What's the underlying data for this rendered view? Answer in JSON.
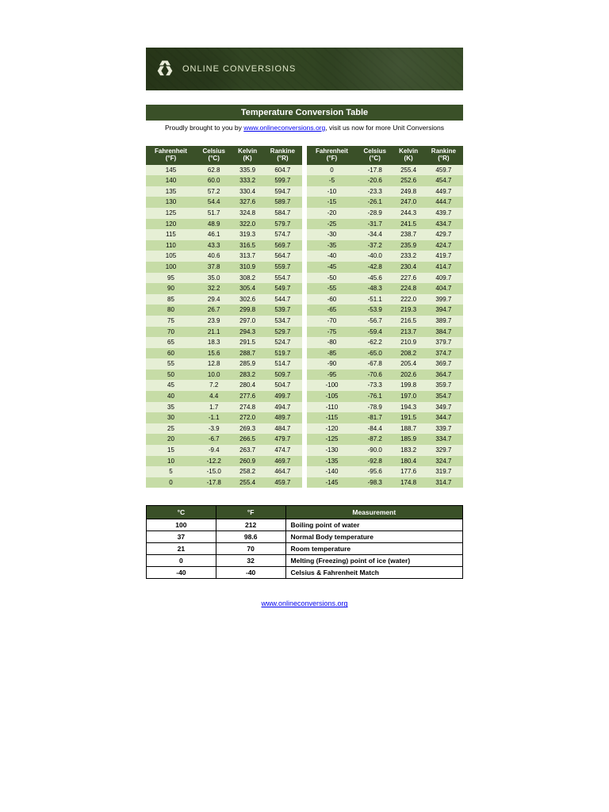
{
  "banner": {
    "text": "ONLINE CONVERSIONS"
  },
  "title": "Temperature Conversion Table",
  "subtitle": {
    "pre": "Proudly brought to you by ",
    "link": "www.onlineconversions.org",
    "post": ", visit us now for more Unit Conversions"
  },
  "headers": {
    "f1": "Fahrenheit",
    "f2": "(°F)",
    "c1": "Celsius",
    "c2": "(°C)",
    "k1": "Kelvin",
    "k2": "(K)",
    "r1": "Rankine",
    "r2": "(°R)"
  },
  "left_rows": [
    [
      "145",
      "62.8",
      "335.9",
      "604.7"
    ],
    [
      "140",
      "60.0",
      "333.2",
      "599.7"
    ],
    [
      "135",
      "57.2",
      "330.4",
      "594.7"
    ],
    [
      "130",
      "54.4",
      "327.6",
      "589.7"
    ],
    [
      "125",
      "51.7",
      "324.8",
      "584.7"
    ],
    [
      "120",
      "48.9",
      "322.0",
      "579.7"
    ],
    [
      "115",
      "46.1",
      "319.3",
      "574.7"
    ],
    [
      "110",
      "43.3",
      "316.5",
      "569.7"
    ],
    [
      "105",
      "40.6",
      "313.7",
      "564.7"
    ],
    [
      "100",
      "37.8",
      "310.9",
      "559.7"
    ],
    [
      "95",
      "35.0",
      "308.2",
      "554.7"
    ],
    [
      "90",
      "32.2",
      "305.4",
      "549.7"
    ],
    [
      "85",
      "29.4",
      "302.6",
      "544.7"
    ],
    [
      "80",
      "26.7",
      "299.8",
      "539.7"
    ],
    [
      "75",
      "23.9",
      "297.0",
      "534.7"
    ],
    [
      "70",
      "21.1",
      "294.3",
      "529.7"
    ],
    [
      "65",
      "18.3",
      "291.5",
      "524.7"
    ],
    [
      "60",
      "15.6",
      "288.7",
      "519.7"
    ],
    [
      "55",
      "12.8",
      "285.9",
      "514.7"
    ],
    [
      "50",
      "10.0",
      "283.2",
      "509.7"
    ],
    [
      "45",
      "7.2",
      "280.4",
      "504.7"
    ],
    [
      "40",
      "4.4",
      "277.6",
      "499.7"
    ],
    [
      "35",
      "1.7",
      "274.8",
      "494.7"
    ],
    [
      "30",
      "-1.1",
      "272.0",
      "489.7"
    ],
    [
      "25",
      "-3.9",
      "269.3",
      "484.7"
    ],
    [
      "20",
      "-6.7",
      "266.5",
      "479.7"
    ],
    [
      "15",
      "-9.4",
      "263.7",
      "474.7"
    ],
    [
      "10",
      "-12.2",
      "260.9",
      "469.7"
    ],
    [
      "5",
      "-15.0",
      "258.2",
      "464.7"
    ],
    [
      "0",
      "-17.8",
      "255.4",
      "459.7"
    ]
  ],
  "right_rows": [
    [
      "0",
      "-17.8",
      "255.4",
      "459.7"
    ],
    [
      "-5",
      "-20.6",
      "252.6",
      "454.7"
    ],
    [
      "-10",
      "-23.3",
      "249.8",
      "449.7"
    ],
    [
      "-15",
      "-26.1",
      "247.0",
      "444.7"
    ],
    [
      "-20",
      "-28.9",
      "244.3",
      "439.7"
    ],
    [
      "-25",
      "-31.7",
      "241.5",
      "434.7"
    ],
    [
      "-30",
      "-34.4",
      "238.7",
      "429.7"
    ],
    [
      "-35",
      "-37.2",
      "235.9",
      "424.7"
    ],
    [
      "-40",
      "-40.0",
      "233.2",
      "419.7"
    ],
    [
      "-45",
      "-42.8",
      "230.4",
      "414.7"
    ],
    [
      "-50",
      "-45.6",
      "227.6",
      "409.7"
    ],
    [
      "-55",
      "-48.3",
      "224.8",
      "404.7"
    ],
    [
      "-60",
      "-51.1",
      "222.0",
      "399.7"
    ],
    [
      "-65",
      "-53.9",
      "219.3",
      "394.7"
    ],
    [
      "-70",
      "-56.7",
      "216.5",
      "389.7"
    ],
    [
      "-75",
      "-59.4",
      "213.7",
      "384.7"
    ],
    [
      "-80",
      "-62.2",
      "210.9",
      "379.7"
    ],
    [
      "-85",
      "-65.0",
      "208.2",
      "374.7"
    ],
    [
      "-90",
      "-67.8",
      "205.4",
      "369.7"
    ],
    [
      "-95",
      "-70.6",
      "202.6",
      "364.7"
    ],
    [
      "-100",
      "-73.3",
      "199.8",
      "359.7"
    ],
    [
      "-105",
      "-76.1",
      "197.0",
      "354.7"
    ],
    [
      "-110",
      "-78.9",
      "194.3",
      "349.7"
    ],
    [
      "-115",
      "-81.7",
      "191.5",
      "344.7"
    ],
    [
      "-120",
      "-84.4",
      "188.7",
      "339.7"
    ],
    [
      "-125",
      "-87.2",
      "185.9",
      "334.7"
    ],
    [
      "-130",
      "-90.0",
      "183.2",
      "329.7"
    ],
    [
      "-135",
      "-92.8",
      "180.4",
      "324.7"
    ],
    [
      "-140",
      "-95.6",
      "177.6",
      "319.7"
    ],
    [
      "-145",
      "-98.3",
      "174.8",
      "314.7"
    ]
  ],
  "meas": {
    "head_c": "°C",
    "head_f": "°F",
    "head_m": "Measurement",
    "rows": [
      [
        "100",
        "212",
        "Boiling point of water"
      ],
      [
        "37",
        "98.6",
        "Normal Body temperature"
      ],
      [
        "21",
        "70",
        "Room temperature"
      ],
      [
        "0",
        "32",
        "Melting (Freezing) point of ice (water)"
      ],
      [
        "-40",
        "-40",
        "Celsius & Fahrenheit Match"
      ]
    ]
  },
  "footer_link": "www.onlineconversions.org",
  "colors": {
    "header_bg": "#3a5028",
    "row_even": "#c6dca6",
    "row_odd": "#e6efd5",
    "link": "#0000ee"
  }
}
